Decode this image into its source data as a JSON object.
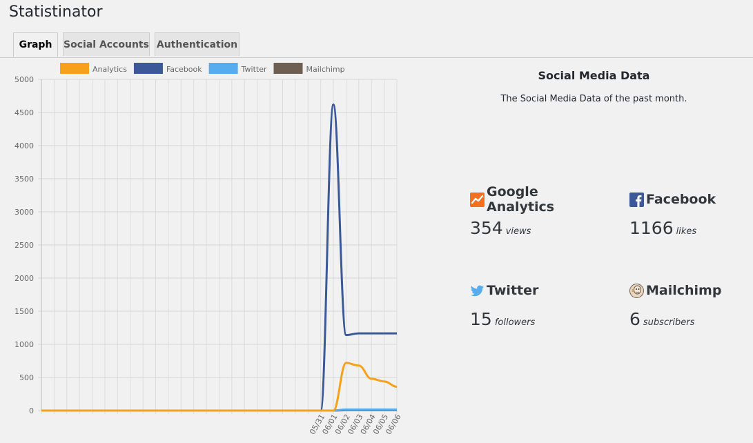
{
  "app": {
    "title": "Statistinator"
  },
  "tabs": [
    {
      "label": "Graph",
      "active": true
    },
    {
      "label": "Social Accounts",
      "active": false
    },
    {
      "label": "Authentication",
      "active": false
    }
  ],
  "chart_data": {
    "type": "line",
    "title": "",
    "xlabel": "",
    "ylabel": "",
    "ylim": [
      0,
      5000
    ],
    "yticks": [
      0,
      500,
      1000,
      1500,
      2000,
      2500,
      3000,
      3500,
      4000,
      4500,
      5000
    ],
    "grid": true,
    "legend_position": "top",
    "x": [
      "",
      "",
      "",
      "",
      "",
      "",
      "",
      "",
      "",
      "",
      "",
      "",
      "",
      "",
      "",
      "",
      "",
      "",
      "",
      "",
      "",
      "",
      "05/31",
      "06/01",
      "06/02",
      "06/03",
      "06/04",
      "06/05",
      "06/06"
    ],
    "series": [
      {
        "name": "Analytics",
        "color": "#f7a11a",
        "values": [
          0,
          0,
          0,
          0,
          0,
          0,
          0,
          0,
          0,
          0,
          0,
          0,
          0,
          0,
          0,
          0,
          0,
          0,
          0,
          0,
          0,
          0,
          0,
          0,
          720,
          680,
          480,
          440,
          360
        ]
      },
      {
        "name": "Facebook",
        "color": "#3b5998",
        "values": [
          0,
          0,
          0,
          0,
          0,
          0,
          0,
          0,
          0,
          0,
          0,
          0,
          0,
          0,
          0,
          0,
          0,
          0,
          0,
          0,
          0,
          0,
          0,
          4620,
          1140,
          1166,
          1166,
          1166,
          1166
        ]
      },
      {
        "name": "Twitter",
        "color": "#55acee",
        "values": [
          0,
          0,
          0,
          0,
          0,
          0,
          0,
          0,
          0,
          0,
          0,
          0,
          0,
          0,
          0,
          0,
          0,
          0,
          0,
          0,
          0,
          0,
          0,
          0,
          15,
          15,
          15,
          15,
          15
        ]
      },
      {
        "name": "Mailchimp",
        "color": "#6f5e52",
        "values": [
          0,
          0,
          0,
          0,
          0,
          0,
          0,
          0,
          0,
          0,
          0,
          0,
          0,
          0,
          0,
          0,
          0,
          0,
          0,
          0,
          0,
          0,
          0,
          0,
          6,
          6,
          6,
          6,
          6
        ]
      }
    ]
  },
  "panel": {
    "title": "Social Media Data",
    "subtitle": "The Social Media Data of the past month.",
    "stats": {
      "ga": {
        "name": "Google Analytics",
        "value": "354",
        "unit": "views",
        "icon": "google-analytics-icon",
        "color": "#f37021"
      },
      "fb": {
        "name": "Facebook",
        "value": "1166",
        "unit": "likes",
        "icon": "facebook-icon",
        "color": "#3b5998"
      },
      "tw": {
        "name": "Twitter",
        "value": "15",
        "unit": "followers",
        "icon": "twitter-icon",
        "color": "#55acee"
      },
      "mc": {
        "name": "Mailchimp",
        "value": "6",
        "unit": "subscribers",
        "icon": "mailchimp-icon",
        "color": "#6f5e52"
      }
    }
  }
}
